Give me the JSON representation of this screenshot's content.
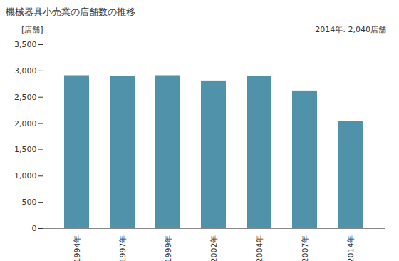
{
  "chart_data": {
    "type": "bar",
    "title": "機械器具小売業の店舗数の推移",
    "y_label": "[店舗]",
    "annotation": "2014年: 2,040店舗",
    "categories": [
      "1994年",
      "1997年",
      "1999年",
      "2002年",
      "2004年",
      "2007年",
      "2014年"
    ],
    "values": [
      2910,
      2890,
      2910,
      2810,
      2890,
      2620,
      2040
    ],
    "color": "#5192ab",
    "ylim": [
      0,
      3500
    ],
    "yticks": [
      0,
      500,
      {
        "value": 1000,
        "label": "1,000"
      },
      {
        "value": 1500,
        "label": "1,500"
      },
      {
        "value": 2000,
        "label": "2,000"
      },
      {
        "value": 2500,
        "label": "2,500"
      },
      {
        "value": 3000,
        "label": "3,000"
      },
      {
        "value": 3500,
        "label": "3,500"
      }
    ],
    "grid": false
  }
}
